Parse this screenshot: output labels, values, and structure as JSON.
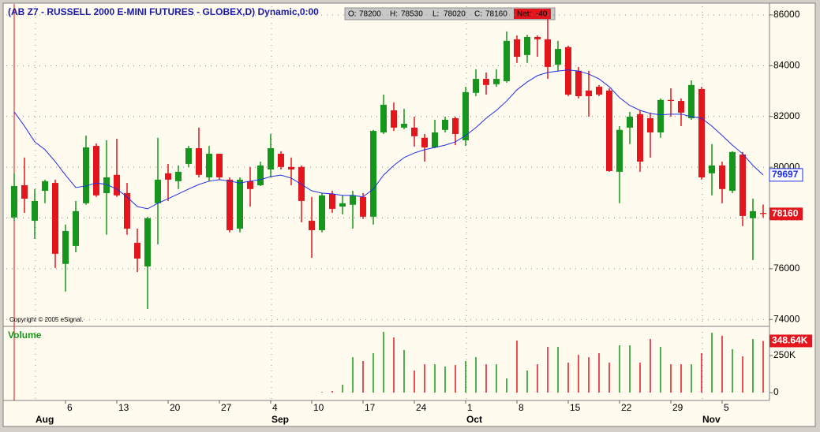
{
  "chart_data": {
    "type": "candlestick",
    "title": "(AB Z7 - RUSSELL 2000 E-MINI FUTURES - GLOBEX,D) Dynamic,0:00",
    "copyright": "Copyright © 2005 eSignal.",
    "categories": [
      null,
      null,
      null,
      null,
      null,
      "6",
      null,
      null,
      null,
      null,
      "13",
      null,
      null,
      null,
      null,
      "20",
      null,
      null,
      null,
      null,
      "27",
      null,
      null,
      null,
      null,
      "4",
      null,
      null,
      null,
      "10",
      null,
      null,
      null,
      null,
      "17",
      null,
      null,
      null,
      null,
      "24",
      null,
      null,
      null,
      null,
      "1",
      null,
      null,
      null,
      null,
      "8",
      null,
      null,
      null,
      null,
      "15",
      null,
      null,
      null,
      null,
      "22",
      null,
      null,
      null,
      null,
      "29",
      null,
      null,
      null,
      null,
      "5",
      null,
      null,
      null,
      null
    ],
    "months": [
      null,
      null,
      "Aug",
      null,
      null,
      null,
      null,
      null,
      null,
      null,
      null,
      null,
      null,
      null,
      null,
      null,
      null,
      null,
      null,
      null,
      null,
      null,
      null,
      null,
      null,
      "Sep",
      null,
      null,
      null,
      null,
      null,
      null,
      null,
      null,
      null,
      null,
      null,
      null,
      null,
      null,
      null,
      null,
      null,
      null,
      "Oct",
      null,
      null,
      null,
      null,
      null,
      null,
      null,
      null,
      null,
      null,
      null,
      null,
      null,
      null,
      null,
      null,
      null,
      null,
      null,
      null,
      null,
      null,
      "Nov",
      null,
      null,
      null,
      null,
      null,
      null
    ],
    "open": [
      78020,
      79290,
      77890,
      79070,
      79380,
      76190,
      76900,
      78580,
      80840,
      78980,
      79700,
      78980,
      77020,
      76090,
      78580,
      79760,
      79450,
      80130,
      80750,
      79600,
      80530,
      79510,
      77580,
      79450,
      79290,
      79910,
      80530,
      80010,
      80010,
      77890,
      77520,
      78950,
      78450,
      78520,
      78830,
      78050,
      81370,
      82240,
      81560,
      81560,
      81160,
      80780,
      81470,
      81930,
      81060,
      82930,
      83480,
      83270,
      83390,
      85040,
      84420,
      85130,
      85040,
      84040,
      84730,
      83800,
      83020,
      83170,
      83020,
      79820,
      81560,
      82090,
      81930,
      81370,
      82650,
      82610,
      81930,
      83080,
      79760,
      80070,
      79070,
      80500,
      77990,
      78200
    ],
    "high": [
      79760,
      80380,
      79140,
      79510,
      79510,
      77740,
      78670,
      81250,
      80940,
      81060,
      81120,
      79380,
      77580,
      78050,
      81160,
      80130,
      80070,
      80840,
      81560,
      80840,
      80530,
      79600,
      79600,
      80010,
      80220,
      81310,
      80630,
      80380,
      80070,
      78830,
      78980,
      79070,
      78890,
      79070,
      78980,
      81470,
      82860,
      82550,
      82300,
      81990,
      81310,
      81870,
      81990,
      81990,
      83170,
      83860,
      83730,
      83860,
      85350,
      85190,
      85220,
      85190,
      85970,
      84980,
      84790,
      83950,
      83800,
      83240,
      83110,
      81620,
      82180,
      82240,
      82150,
      82710,
      83110,
      82710,
      83420,
      83170,
      80910,
      80220,
      80630,
      80600,
      78760,
      78530
    ],
    "low": [
      77890,
      78200,
      77180,
      78580,
      76030,
      75100,
      76650,
      78520,
      78830,
      77340,
      78830,
      77340,
      75870,
      74410,
      76960,
      78670,
      79140,
      80000,
      79600,
      79450,
      79510,
      77430,
      77430,
      78450,
      79260,
      79600,
      79910,
      79290,
      77830,
      76430,
      77430,
      78200,
      78140,
      77580,
      77960,
      77740,
      81310,
      81430,
      81500,
      80810,
      80220,
      80750,
      81370,
      80870,
      80840,
      82800,
      82860,
      83170,
      83330,
      84110,
      84110,
      84350,
      83480,
      83800,
      82800,
      82710,
      81990,
      82800,
      79820,
      78580,
      80910,
      79820,
      80380,
      81160,
      81990,
      81620,
      81870,
      79510,
      78890,
      78580,
      78980,
      77680,
      76340,
      78020
    ],
    "close": [
      79260,
      78760,
      78670,
      79450,
      76590,
      77490,
      78270,
      80780,
      78890,
      79600,
      78890,
      77580,
      76400,
      77990,
      79510,
      79510,
      79820,
      80750,
      79700,
      80530,
      79600,
      77520,
      79510,
      79140,
      80070,
      80750,
      80010,
      79910,
      78670,
      77520,
      78890,
      78360,
      78580,
      78890,
      78050,
      81430,
      82460,
      81560,
      81710,
      81220,
      80780,
      81370,
      81870,
      81310,
      82960,
      83480,
      83240,
      83480,
      84980,
      84350,
      85130,
      85040,
      83950,
      84660,
      82860,
      82800,
      82800,
      82860,
      79850,
      81470,
      81990,
      80220,
      81370,
      82650,
      82610,
      82150,
      83240,
      79600,
      80070,
      79140,
      80600,
      78080,
      78270,
      78160
    ],
    "up_color": "#16961c",
    "down_color": "#e3161e",
    "ylim": [
      73760,
      86340
    ],
    "yticks": [
      74000,
      76000,
      78000,
      80000,
      82000,
      84000,
      86000
    ],
    "grid": true,
    "ma": {
      "color": "#1f2ee6",
      "values": [
        82180,
        81620,
        81000,
        80690,
        80220,
        79690,
        79200,
        79260,
        79380,
        79320,
        79140,
        78830,
        78450,
        78360,
        78580,
        78760,
        78950,
        79140,
        79320,
        79450,
        79510,
        79450,
        79380,
        79450,
        79510,
        79630,
        79690,
        79570,
        79320,
        79070,
        78980,
        78950,
        78890,
        78890,
        78830,
        79140,
        79690,
        80070,
        80380,
        80560,
        80690,
        80780,
        80870,
        81000,
        81250,
        81560,
        81930,
        82240,
        82610,
        83050,
        83360,
        83610,
        83730,
        83790,
        83830,
        83790,
        83670,
        83480,
        83170,
        82740,
        82430,
        82240,
        82120,
        82060,
        82090,
        82090,
        81990,
        81930,
        81620,
        81250,
        80870,
        80530,
        80070,
        79697
      ]
    },
    "info": {
      "labels": [
        "O:",
        "H:",
        "L:",
        "C:"
      ],
      "net_label": "Net:",
      "net": -40
    },
    "volume": {
      "title": "Volume",
      "values": [
        0,
        0,
        0,
        0,
        0,
        0,
        0,
        0,
        0,
        0,
        0,
        0,
        0,
        0,
        0,
        0,
        0,
        0,
        0,
        0,
        0,
        0,
        0,
        0,
        0,
        0,
        0,
        0,
        0,
        0,
        5000,
        11000,
        53000,
        239000,
        213000,
        266000,
        410000,
        372000,
        287000,
        149000,
        191000,
        191000,
        176000,
        186000,
        213000,
        239000,
        191000,
        191000,
        96000,
        351000,
        149000,
        191000,
        309000,
        309000,
        202000,
        255000,
        239000,
        266000,
        202000,
        319000,
        319000,
        202000,
        362000,
        309000,
        191000,
        191000,
        191000,
        266000,
        404000,
        383000,
        293000,
        245000,
        362000,
        348640
      ],
      "value_labels": [
        null,
        null,
        null,
        null,
        null,
        null,
        null,
        null,
        null,
        null,
        null,
        null,
        null,
        null,
        null,
        null,
        null,
        null,
        null,
        null,
        null,
        null,
        null,
        null,
        null,
        null,
        null,
        null,
        null,
        null,
        null,
        null,
        null,
        null,
        null,
        null,
        null,
        null,
        null,
        null,
        null,
        null,
        null,
        null,
        null,
        null,
        null,
        null,
        null,
        null,
        null,
        null,
        null,
        null,
        null,
        null,
        null,
        null,
        null,
        null,
        null,
        null,
        null,
        null,
        null,
        null,
        null,
        null,
        null,
        null,
        null,
        null,
        null,
        "348.64K"
      ],
      "ylim": [
        -53000,
        441500
      ],
      "yticks": [
        0,
        {
          "value": 250000,
          "label": "250K"
        }
      ]
    }
  }
}
